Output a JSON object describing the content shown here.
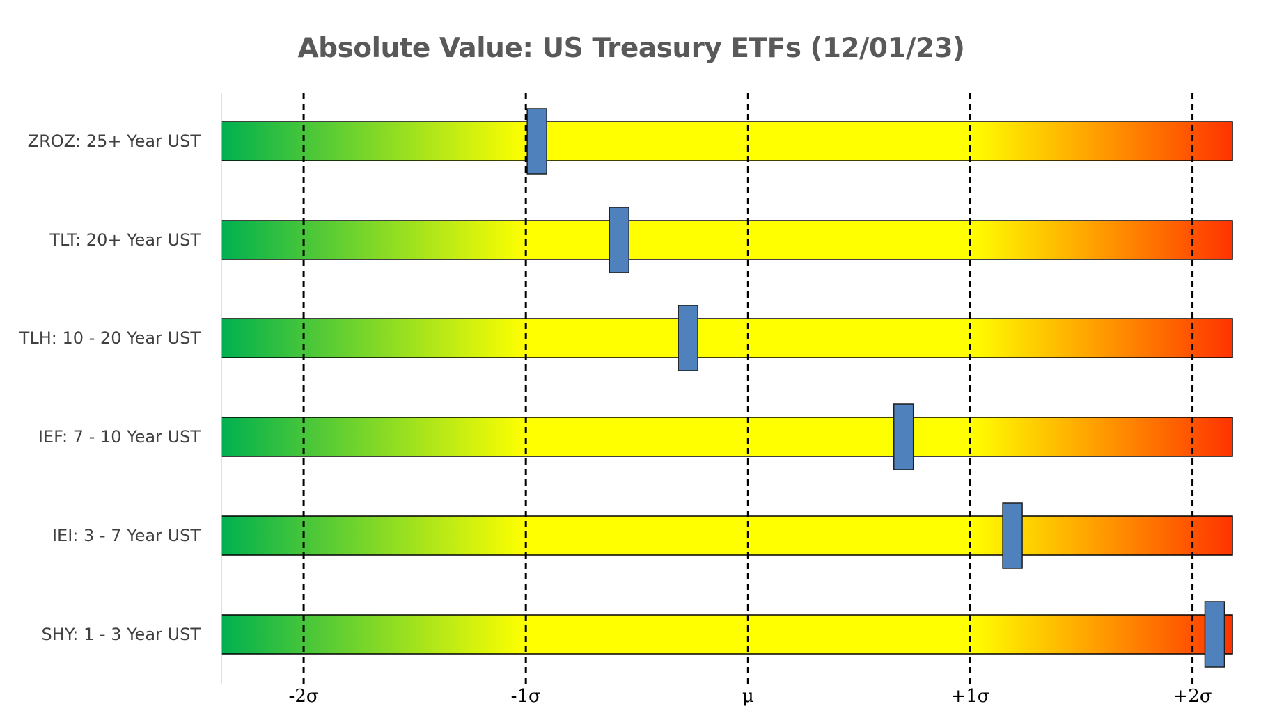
{
  "chart_data": {
    "type": "bar",
    "title": "Absolute Value: US Treasury ETFs (12/01/23)",
    "xlabel": "",
    "ylabel": "",
    "xlim": [
      -2.37,
      2.18
    ],
    "x_ticks": [
      {
        "value": -2,
        "label": "-2σ"
      },
      {
        "value": -1,
        "label": "-1σ"
      },
      {
        "value": 0,
        "label": "μ"
      },
      {
        "value": 1,
        "label": "+1σ"
      },
      {
        "value": 2,
        "label": "+2σ"
      }
    ],
    "categories": [
      "ZROZ: 25+ Year UST",
      "TLT: 20+ Year UST",
      "TLH: 10 - 20 Year UST",
      "IEF: 7 - 10 Year UST",
      "IEI: 3 - 7 Year UST",
      "SHY: 1 - 3 Year UST"
    ],
    "values": [
      -0.95,
      -0.58,
      -0.27,
      0.7,
      1.19,
      2.1
    ],
    "gradient_stops": [
      {
        "value": -2.37,
        "color": "#00b050"
      },
      {
        "value": -1.0,
        "color": "#ffff00"
      },
      {
        "value": 1.0,
        "color": "#ffff00"
      },
      {
        "value": 1.6,
        "color": "#ff9900"
      },
      {
        "value": 2.18,
        "color": "#ff3300"
      }
    ],
    "marker_color": "#4f81bd",
    "grid": false,
    "legend": "none"
  }
}
